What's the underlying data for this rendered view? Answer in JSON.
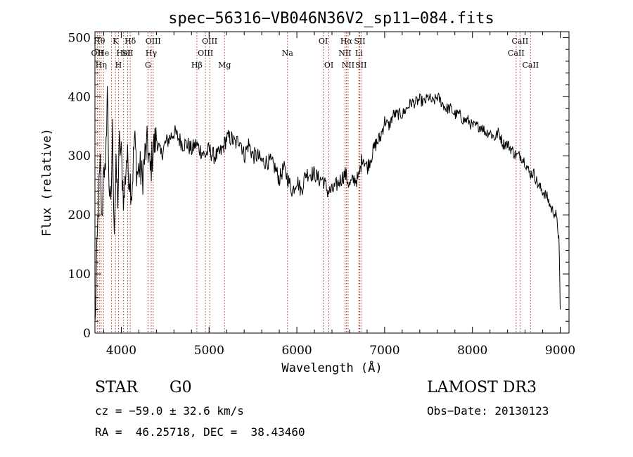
{
  "chart_data": {
    "type": "line",
    "title": "spec−56316−VB046N36V2_sp11−084.fits",
    "xlabel": "Wavelength (Å)",
    "ylabel": "Flux (relative)",
    "xlim": [
      3700,
      9100
    ],
    "ylim": [
      0,
      510
    ],
    "xticks": [
      4000,
      5000,
      6000,
      7000,
      8000,
      9000
    ],
    "yticks": [
      0,
      100,
      200,
      300,
      400,
      500
    ],
    "x_tick_labels": [
      "4000",
      "5000",
      "6000",
      "7000",
      "8000",
      "9000"
    ],
    "y_tick_labels": [
      "0",
      "100",
      "200",
      "300",
      "400",
      "500"
    ],
    "series": [
      {
        "name": "flux",
        "color": "#000000",
        "x": [
          3700,
          3720,
          3740,
          3760,
          3780,
          3800,
          3820,
          3840,
          3860,
          3880,
          3900,
          3920,
          3940,
          3960,
          3980,
          4000,
          4030,
          4060,
          4090,
          4120,
          4150,
          4180,
          4210,
          4240,
          4270,
          4300,
          4330,
          4360,
          4400,
          4450,
          4500,
          4550,
          4600,
          4650,
          4700,
          4750,
          4800,
          4850,
          4900,
          4950,
          5000,
          5050,
          5100,
          5150,
          5200,
          5250,
          5300,
          5350,
          5400,
          5450,
          5500,
          5550,
          5600,
          5650,
          5700,
          5750,
          5800,
          5850,
          5900,
          5950,
          6000,
          6050,
          6100,
          6150,
          6200,
          6250,
          6300,
          6350,
          6400,
          6450,
          6500,
          6550,
          6600,
          6650,
          6700,
          6750,
          6800,
          6850,
          6900,
          6950,
          7000,
          7050,
          7100,
          7150,
          7200,
          7250,
          7300,
          7350,
          7400,
          7450,
          7500,
          7550,
          7600,
          7650,
          7700,
          7750,
          7800,
          7850,
          7900,
          7950,
          8000,
          8050,
          8100,
          8150,
          8200,
          8250,
          8300,
          8350,
          8400,
          8450,
          8500,
          8550,
          8600,
          8650,
          8700,
          8750,
          8800,
          8850,
          8900,
          8950,
          8970,
          8985,
          9000
        ],
        "values": [
          10,
          120,
          220,
          280,
          180,
          300,
          250,
          420,
          260,
          200,
          340,
          180,
          270,
          230,
          320,
          300,
          220,
          300,
          270,
          240,
          330,
          270,
          280,
          260,
          300,
          320,
          270,
          310,
          330,
          300,
          320,
          330,
          340,
          330,
          320,
          320,
          310,
          320,
          310,
          300,
          310,
          300,
          300,
          310,
          330,
          330,
          320,
          330,
          300,
          320,
          300,
          300,
          290,
          290,
          290,
          280,
          260,
          280,
          260,
          240,
          260,
          240,
          270,
          270,
          270,
          260,
          260,
          240,
          240,
          250,
          260,
          270,
          250,
          260,
          260,
          300,
          280,
          300,
          320,
          330,
          360,
          350,
          370,
          370,
          370,
          380,
          390,
          390,
          395,
          390,
          400,
          390,
          400,
          390,
          380,
          380,
          370,
          370,
          360,
          360,
          350,
          350,
          350,
          340,
          340,
          330,
          340,
          320,
          320,
          310,
          300,
          300,
          290,
          270,
          270,
          250,
          240,
          230,
          210,
          200,
          180,
          160,
          40
        ]
      }
    ],
    "line_marks": [
      {
        "x": 3727,
        "labels": [
          "OII"
        ],
        "row": 2
      },
      {
        "x": 3750,
        "labels": [
          "Hθ"
        ],
        "row": 1
      },
      {
        "x": 3771,
        "labels": [
          "Hη"
        ],
        "row": 3
      },
      {
        "x": 3798,
        "labels": [
          "He"
        ],
        "row": 2
      },
      {
        "x": 3889,
        "labels": [],
        "row": 0
      },
      {
        "x": 3934,
        "labels": [
          "K"
        ],
        "row": 1
      },
      {
        "x": 3968,
        "labels": [
          "H"
        ],
        "row": 3
      },
      {
        "x": 4026,
        "labels": [
          "HeI"
        ],
        "row": 2
      },
      {
        "x": 4072,
        "labels": [
          "SII"
        ],
        "row": 2
      },
      {
        "x": 4102,
        "labels": [
          "Hδ"
        ],
        "row": 1
      },
      {
        "x": 4304,
        "labels": [
          "G"
        ],
        "row": 3
      },
      {
        "x": 4341,
        "labels": [
          "Hγ"
        ],
        "row": 2
      },
      {
        "x": 4363,
        "labels": [
          "OIII"
        ],
        "row": 1
      },
      {
        "x": 4861,
        "labels": [
          "Hβ"
        ],
        "row": 3
      },
      {
        "x": 4959,
        "labels": [
          "OIII"
        ],
        "row": 2
      },
      {
        "x": 5007,
        "labels": [
          "OIII"
        ],
        "row": 1
      },
      {
        "x": 5176,
        "labels": [
          "Mg"
        ],
        "row": 3
      },
      {
        "x": 5893,
        "labels": [
          "Na"
        ],
        "row": 2
      },
      {
        "x": 6300,
        "labels": [
          "OI"
        ],
        "row": 1
      },
      {
        "x": 6364,
        "labels": [
          "OI"
        ],
        "row": 3
      },
      {
        "x": 6548,
        "labels": [
          "NII"
        ],
        "row": 2
      },
      {
        "x": 6563,
        "labels": [
          "Hα"
        ],
        "row": 1
      },
      {
        "x": 6584,
        "labels": [
          "NII"
        ],
        "row": 3
      },
      {
        "x": 6707,
        "labels": [
          "Li"
        ],
        "row": 2
      },
      {
        "x": 6716,
        "labels": [
          "SII"
        ],
        "row": 1
      },
      {
        "x": 6731,
        "labels": [
          "SII"
        ],
        "row": 3
      },
      {
        "x": 8498,
        "labels": [
          "CaII"
        ],
        "row": 2
      },
      {
        "x": 8542,
        "labels": [
          "CaII"
        ],
        "row": 1
      },
      {
        "x": 8662,
        "labels": [
          "CaII"
        ],
        "row": 3
      }
    ],
    "line_color": "#b0321e"
  },
  "info": {
    "object_class": "STAR",
    "subclass": "G0",
    "survey": "LAMOST DR3",
    "redshift": "cz = −59.0 ± 32.6 km/s",
    "obs_date": "Obs−Date: 20130123",
    "coords": "RA =  46.25718, DEC =  38.43460"
  }
}
